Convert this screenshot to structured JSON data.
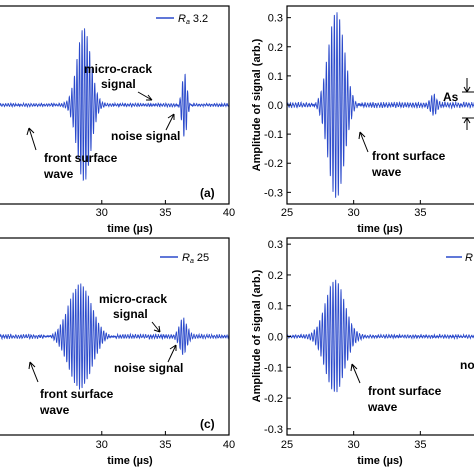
{
  "chart_data": [
    {
      "id": "a",
      "type": "line",
      "panel_label": "(a)",
      "xlabel": "time (µs)",
      "ylabel": "",
      "xlim": [
        22,
        40
      ],
      "ylim": [
        -0.35,
        0.35
      ],
      "xticks": [
        "30",
        "35",
        "40"
      ],
      "yticks": [],
      "legend": {
        "prefix": "R",
        "subscript": "a",
        "value": "3.2",
        "placement": "top-right"
      },
      "annotations": [
        "micro-crack",
        "signal",
        "noise signal",
        "front surface",
        "wave"
      ],
      "series": [
        {
          "name": "R a 3.2",
          "color": "#2b4acb",
          "bursts": [
            {
              "center": 28.6,
              "amplitude": 0.27,
              "width": 0.75
            },
            {
              "center": 36.5,
              "amplitude": 0.12,
              "width": 0.28
            }
          ],
          "noise": 0.006
        }
      ]
    },
    {
      "id": "b",
      "type": "line",
      "panel_label": "",
      "xlabel": "time (µs)",
      "ylabel": "Amplitude of signal (arb.)",
      "xlim": [
        25,
        40
      ],
      "ylim": [
        -0.34,
        0.34
      ],
      "xticks": [
        "25",
        "30",
        "35"
      ],
      "yticks": [
        "-0.3",
        "-0.2",
        "-0.1",
        "0.0",
        "0.1",
        "0.2",
        "0.3"
      ],
      "legend": {
        "prefix": "",
        "subscript": "",
        "value": "",
        "placement": "top-right"
      },
      "annotations": [
        "As",
        "front surface",
        "wave"
      ],
      "series": [
        {
          "name": "",
          "color": "#2b4acb",
          "bursts": [
            {
              "center": 28.7,
              "amplitude": 0.33,
              "width": 0.85
            },
            {
              "center": 36.0,
              "amplitude": 0.03,
              "width": 0.3
            }
          ],
          "noise": 0.01
        }
      ]
    },
    {
      "id": "c",
      "type": "line",
      "panel_label": "(c)",
      "xlabel": "time (µs)",
      "ylabel": "",
      "xlim": [
        22,
        40
      ],
      "ylim": [
        -0.35,
        0.35
      ],
      "xticks": [
        "30",
        "35",
        "40"
      ],
      "yticks": [],
      "legend": {
        "prefix": "R",
        "subscript": "a",
        "value": "25",
        "placement": "top-right"
      },
      "annotations": [
        "micro-crack",
        "signal",
        "noise signal",
        "front surface",
        "wave"
      ],
      "series": [
        {
          "name": "R a 25",
          "color": "#2b4acb",
          "bursts": [
            {
              "center": 28.3,
              "amplitude": 0.19,
              "width": 1.3
            },
            {
              "center": 36.4,
              "amplitude": 0.06,
              "width": 0.4
            }
          ],
          "noise": 0.008
        }
      ]
    },
    {
      "id": "d",
      "type": "line",
      "panel_label": "",
      "xlabel": "time (µs)",
      "ylabel": "Amplitude of signal (arb.)",
      "xlim": [
        25,
        40
      ],
      "ylim": [
        -0.32,
        0.32
      ],
      "xticks": [
        "25",
        "30",
        "35"
      ],
      "yticks": [
        "-0.3",
        "-0.2",
        "-0.1",
        "0.0",
        "0.1",
        "0.2",
        "0.3"
      ],
      "legend": {
        "prefix": "R",
        "subscript": "",
        "value": "",
        "placement": "top-right"
      },
      "annotations": [
        "no",
        "front surface",
        "wave"
      ],
      "series": [
        {
          "name": "",
          "color": "#2b4acb",
          "bursts": [
            {
              "center": 28.6,
              "amplitude": 0.18,
              "width": 1.0
            }
          ],
          "noise": 0.006
        }
      ]
    }
  ]
}
